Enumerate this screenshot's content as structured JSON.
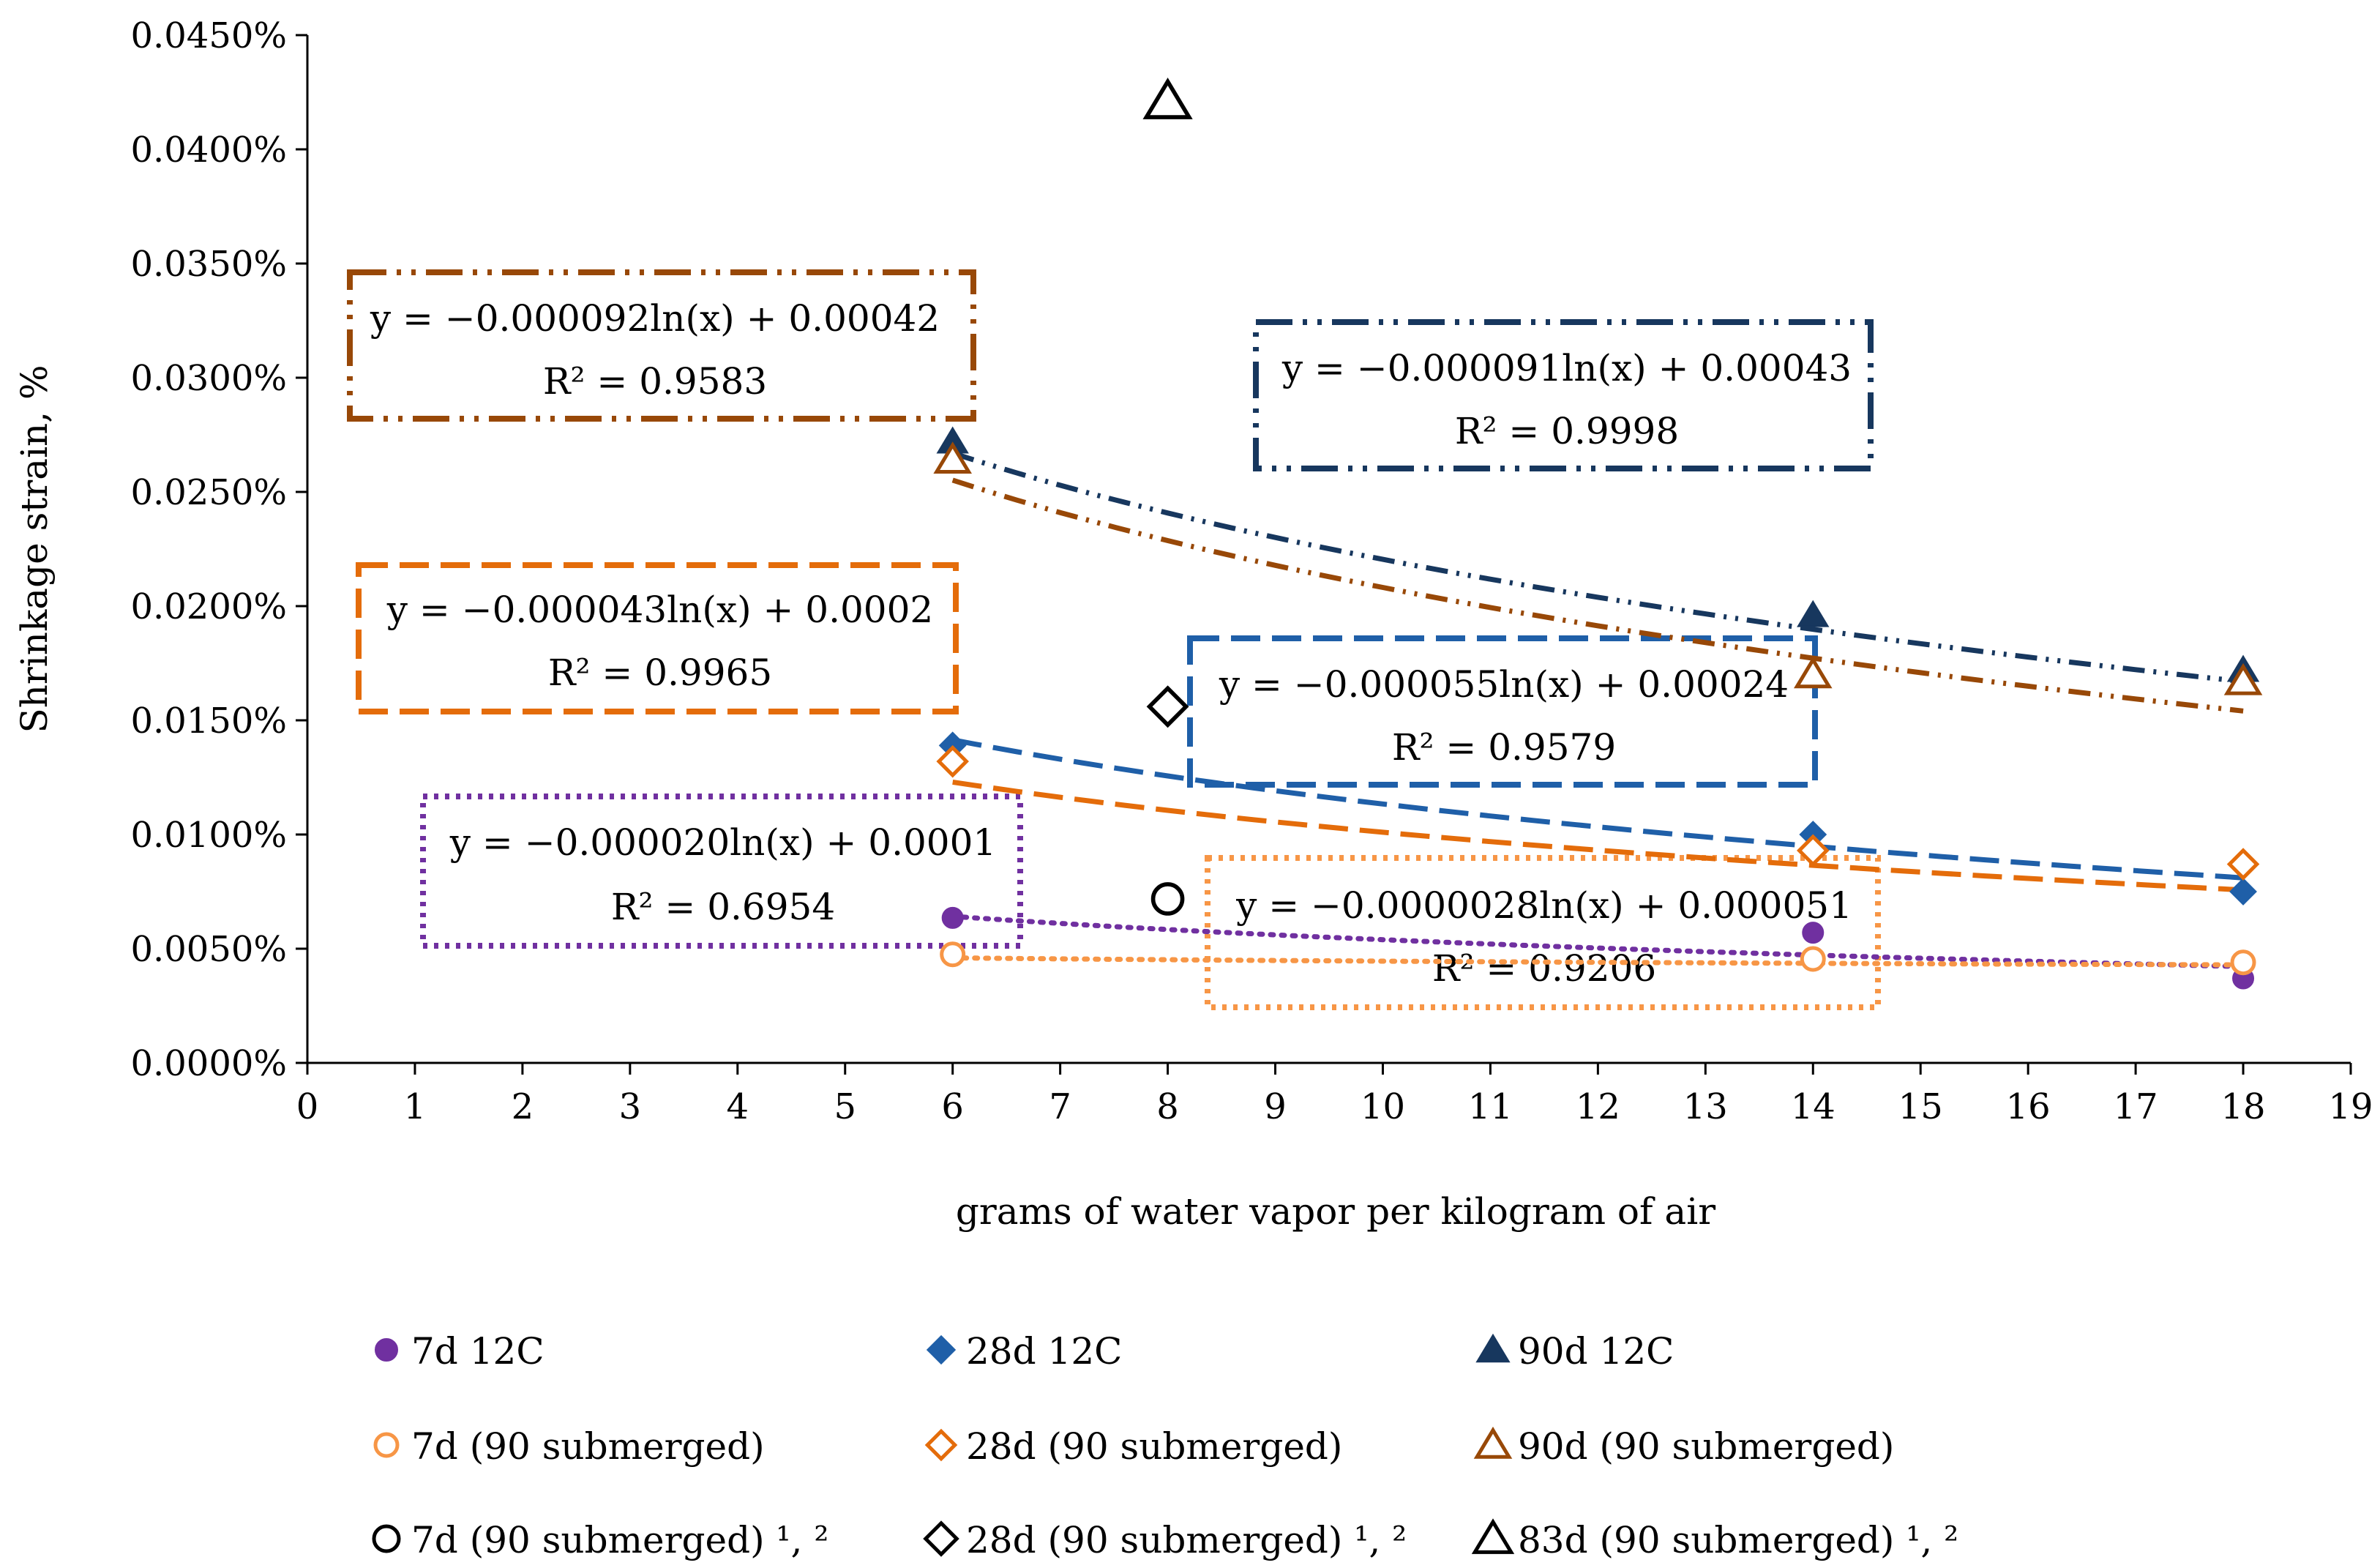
{
  "chart_data": {
    "type": "scatter",
    "title": "",
    "xlabel": "grams of water vapor per kilogram of air",
    "ylabel": "Shrinkage strain, %",
    "xlim": [
      0,
      19
    ],
    "ylim": [
      0,
      0.00045
    ],
    "x_ticks": [
      0,
      1,
      2,
      3,
      4,
      5,
      6,
      7,
      8,
      9,
      10,
      11,
      12,
      13,
      14,
      15,
      16,
      17,
      18,
      19
    ],
    "y_ticks": [
      0,
      5e-05,
      0.0001,
      0.00015,
      0.0002,
      0.00025,
      0.0003,
      0.00035,
      0.0004,
      0.00045
    ],
    "y_tick_labels": [
      "0.0000%",
      "0.0050%",
      "0.0100%",
      "0.0150%",
      "0.0200%",
      "0.0250%",
      "0.0300%",
      "0.0350%",
      "0.0400%",
      "0.0450%"
    ],
    "grid": false,
    "legend_position": "bottom",
    "series": [
      {
        "id": "s7d12",
        "name": "7d 12C",
        "marker": "circle",
        "fill": "#7030A0",
        "stroke": "#7030A0",
        "hollow": false,
        "points": [
          [
            6,
            6.35e-05
          ],
          [
            14,
            5.7e-05
          ],
          [
            18,
            3.7e-05
          ]
        ],
        "trend": {
          "a": -2e-05,
          "b": 0.0001,
          "dash": "4,11",
          "width": 7,
          "cap": "round",
          "color": "#7030A0"
        }
      },
      {
        "id": "s28d12",
        "name": "28d 12C",
        "marker": "diamond",
        "fill": "#1F5FA8",
        "stroke": "#1F5FA8",
        "hollow": false,
        "points": [
          [
            6,
            0.000139
          ],
          [
            14,
            0.0001
          ],
          [
            18,
            7.5e-05
          ]
        ],
        "trend": {
          "a": -5.5e-05,
          "b": 0.00024,
          "dash": "40,16",
          "width": 7,
          "cap": "butt",
          "color": "#1F5FA8"
        }
      },
      {
        "id": "s90d12",
        "name": "90d 12C",
        "marker": "triangle",
        "fill": "#17375E",
        "stroke": "#17375E",
        "hollow": false,
        "points": [
          [
            6,
            0.000272
          ],
          [
            14,
            0.000196
          ],
          [
            18,
            0.000172
          ]
        ],
        "trend": {
          "a": -9.1e-05,
          "b": 0.00043,
          "dash": "30,12,4,12,4,12",
          "width": 7,
          "cap": "butt",
          "color": "#17375E"
        }
      },
      {
        "id": "s7dsub",
        "name": "7d (90 submerged)",
        "marker": "circle",
        "fill": "#ffffff",
        "stroke": "#F79646",
        "hollow": true,
        "points": [
          [
            6,
            4.75e-05
          ],
          [
            14,
            4.55e-05
          ],
          [
            18,
            4.4e-05
          ]
        ],
        "trend": {
          "a": -2.8e-06,
          "b": 5.1e-05,
          "dash": "4,11",
          "width": 7,
          "cap": "round",
          "color": "#F79646"
        }
      },
      {
        "id": "s28dsub",
        "name": "28d (90 submerged)",
        "marker": "diamond",
        "fill": "#ffffff",
        "stroke": "#E46C0A",
        "hollow": true,
        "points": [
          [
            6,
            0.000132
          ],
          [
            14,
            9.3e-05
          ],
          [
            18,
            8.7e-05
          ]
        ],
        "trend": {
          "a": -4.3e-05,
          "b": 0.0002,
          "dash": "40,16",
          "width": 7,
          "cap": "butt",
          "color": "#E46C0A"
        }
      },
      {
        "id": "s90dsub",
        "name": "90d (90 submerged)",
        "marker": "triangle",
        "fill": "#ffffff",
        "stroke": "#984807",
        "hollow": true,
        "points": [
          [
            6,
            0.000264
          ],
          [
            14,
            0.00017
          ],
          [
            18,
            0.000167
          ]
        ],
        "trend": {
          "a": -9.2e-05,
          "b": 0.00042,
          "dash": "30,12,4,12,4,12",
          "width": 7,
          "cap": "butt",
          "color": "#984807"
        }
      },
      {
        "id": "s7dsub12",
        "name": "7d (90 submerged) ¹, ²",
        "marker": "circle",
        "fill": "#ffffff",
        "stroke": "#000000",
        "hollow": true,
        "points": [
          [
            8,
            7.18e-05
          ]
        ]
      },
      {
        "id": "s28dsub12",
        "name": "28d (90 submerged) ¹, ²",
        "marker": "diamond",
        "fill": "#ffffff",
        "stroke": "#000000",
        "hollow": true,
        "points": [
          [
            8,
            0.000156
          ]
        ]
      },
      {
        "id": "s83dsub12",
        "name": "83d (90 submerged) ¹, ²",
        "marker": "triangle",
        "fill": "#ffffff",
        "stroke": "#000000",
        "hollow": true,
        "points": [
          [
            8,
            0.000421
          ]
        ]
      }
    ],
    "annotations": [
      {
        "id": "eq90dsub",
        "equation": "y = −0.000092ln(x) + 0.00042",
        "r2": "R² = 0.9583",
        "color": "#984807",
        "dash": "50,14,6,14,6,14"
      },
      {
        "id": "eq90d12",
        "equation": "y = −0.000091ln(x) + 0.00043",
        "r2": "R² = 0.9998",
        "color": "#17375E",
        "dash": "50,14,6,14,6,14"
      },
      {
        "id": "eq28dsub",
        "equation": "y = −0.000043ln(x) + 0.0002",
        "r2": "R² = 0.9965",
        "color": "#E46C0A",
        "dash": "40,16"
      },
      {
        "id": "eq28d12",
        "equation": "y = −0.000055ln(x) + 0.00024",
        "r2": "R² = 0.9579",
        "color": "#1F5FA8",
        "dash": "40,16"
      },
      {
        "id": "eq7d12",
        "equation": "y = −0.000020ln(x) + 0.0001",
        "r2": "R² = 0.6954",
        "color": "#7030A0",
        "dash": "6,9"
      },
      {
        "id": "eq7dsub",
        "equation": "y = −0.0000028ln(x) + 0.000051",
        "r2": "R² = 0.9206",
        "color": "#F79646",
        "dash": "6,9"
      }
    ]
  }
}
